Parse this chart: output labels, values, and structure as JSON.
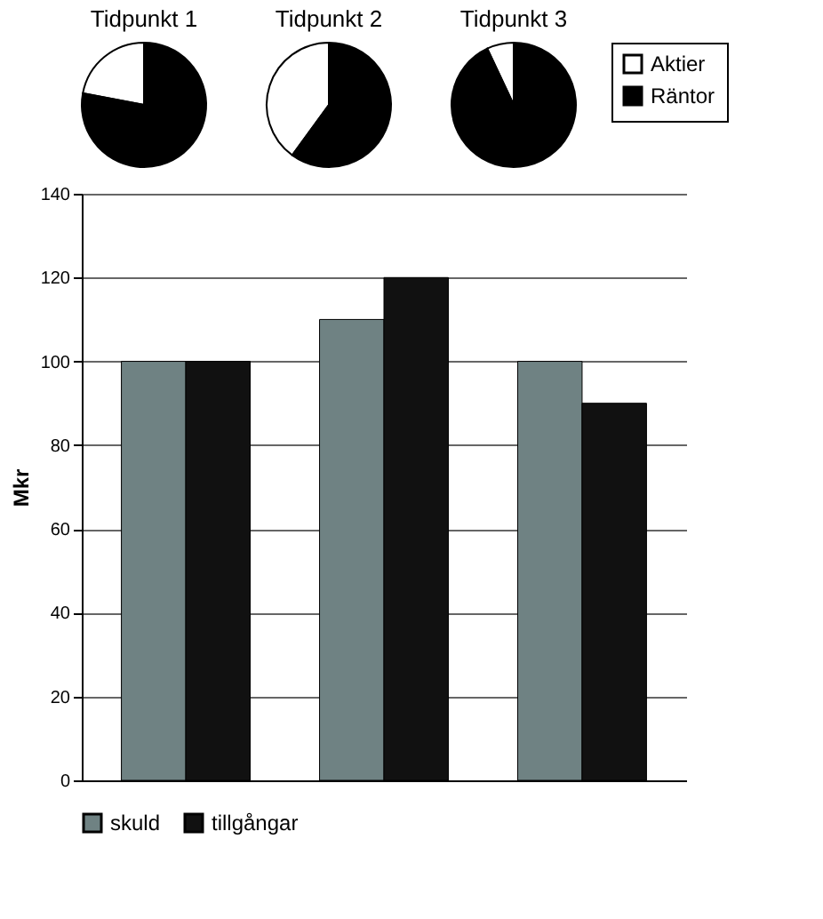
{
  "chart_data": [
    {
      "type": "pie",
      "categories": [
        "Aktier",
        "Räntor"
      ],
      "colors": [
        "#ffffff",
        "#000000"
      ],
      "legend": "right",
      "series": [
        {
          "name": "Tidpunkt 1",
          "values": [
            22,
            78
          ]
        },
        {
          "name": "Tidpunkt 2",
          "values": [
            40,
            60
          ]
        },
        {
          "name": "Tidpunkt 3",
          "values": [
            7,
            93
          ]
        }
      ]
    },
    {
      "type": "bar",
      "categories": [
        null,
        null,
        null
      ],
      "ylabel": "Mkr",
      "ylim": [
        0,
        140
      ],
      "yticks": [
        0,
        20,
        40,
        60,
        80,
        100,
        120,
        140
      ],
      "grid": "y",
      "legend": "bottom",
      "tick_labels": "y",
      "series": [
        {
          "name": "skuld",
          "color": "#6f8283",
          "values": [
            100,
            110,
            100
          ]
        },
        {
          "name": "tillgångar",
          "color": "#111111",
          "values": [
            100,
            120,
            90
          ]
        }
      ]
    }
  ]
}
